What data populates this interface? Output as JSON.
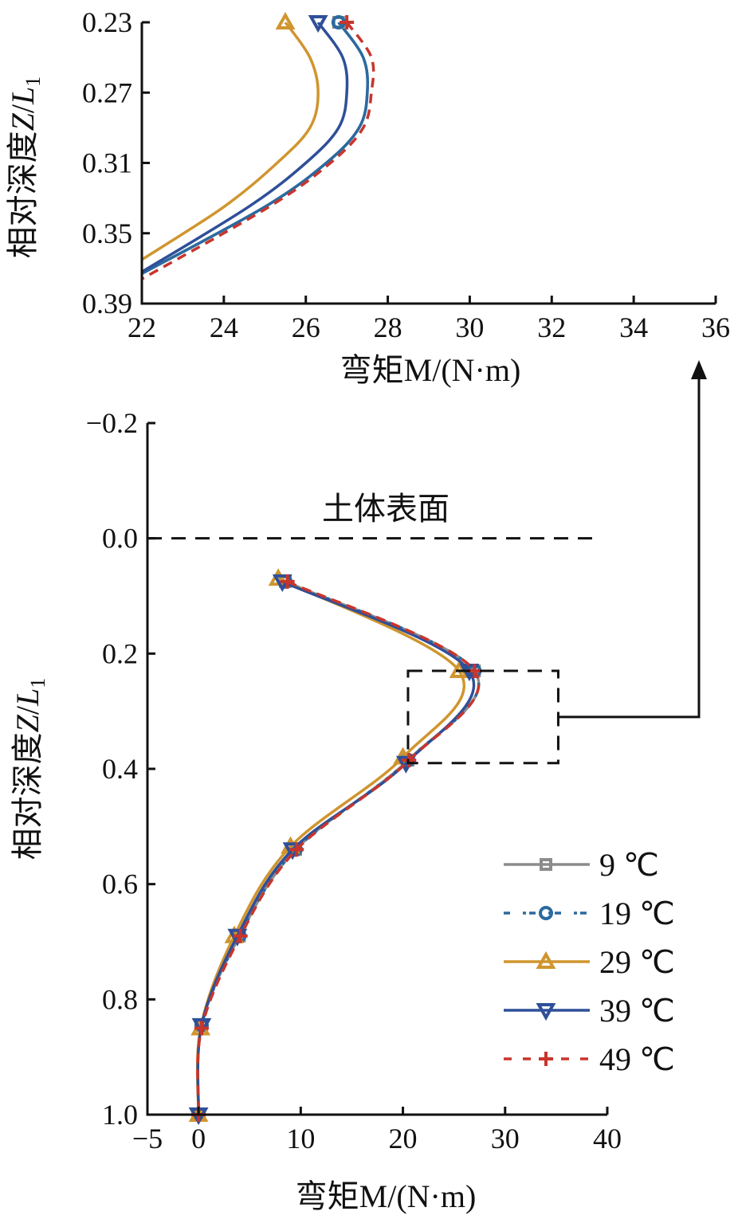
{
  "chart_data": [
    {
      "type": "line",
      "title": "inset",
      "xlabel": "弯矩M/(N·m)",
      "xlabel_parts": [
        "弯矩",
        "M",
        "/(N·m)"
      ],
      "ylabel": "相对深度Z/L1",
      "ylabel_parts": [
        "相对深度",
        "Z",
        "/",
        "L",
        "1"
      ],
      "xlim": [
        22,
        36
      ],
      "ylim": [
        0.23,
        0.39
      ],
      "xticks": [
        22,
        24,
        26,
        28,
        30,
        32,
        34,
        36
      ],
      "yticks": [
        "0.23",
        "0.27",
        "0.31",
        "0.35",
        "0.39"
      ],
      "series": [
        {
          "name": "9 ℃",
          "color": "#8c8c8c",
          "dash": "",
          "points": [
            [
              26.8,
              0.23
            ],
            [
              27.4,
              0.25
            ],
            [
              27.5,
              0.27
            ],
            [
              27.3,
              0.29
            ],
            [
              26.5,
              0.31
            ],
            [
              25.0,
              0.335
            ],
            [
              22,
              0.373
            ]
          ]
        },
        {
          "name": "19 ℃",
          "color": "#2a6aa0",
          "dash": "",
          "points": [
            [
              26.8,
              0.23
            ],
            [
              27.4,
              0.25
            ],
            [
              27.5,
              0.27
            ],
            [
              27.3,
              0.29
            ],
            [
              26.5,
              0.31
            ],
            [
              25.0,
              0.335
            ],
            [
              22,
              0.373
            ]
          ]
        },
        {
          "name": "29 ℃",
          "color": "#d0952e",
          "dash": "",
          "points": [
            [
              25.5,
              0.23
            ],
            [
              26.1,
              0.25
            ],
            [
              26.3,
              0.27
            ],
            [
              26.1,
              0.29
            ],
            [
              25.3,
              0.31
            ],
            [
              24.0,
              0.335
            ],
            [
              22,
              0.365
            ]
          ]
        },
        {
          "name": "39 ℃",
          "color": "#2f4f98",
          "dash": "",
          "points": [
            [
              26.3,
              0.23
            ],
            [
              26.9,
              0.25
            ],
            [
              27.0,
              0.27
            ],
            [
              26.8,
              0.29
            ],
            [
              26.0,
              0.31
            ],
            [
              24.6,
              0.335
            ],
            [
              22,
              0.372
            ]
          ]
        },
        {
          "name": "49 ℃",
          "color": "#c8352c",
          "dash": "12 8",
          "points": [
            [
              27.0,
              0.23
            ],
            [
              27.6,
              0.25
            ],
            [
              27.6,
              0.27
            ],
            [
              27.4,
              0.29
            ],
            [
              26.6,
              0.31
            ],
            [
              25.1,
              0.335
            ],
            [
              22,
              0.376
            ]
          ]
        }
      ]
    },
    {
      "type": "line",
      "title": "main",
      "xlabel": "弯矩M/(N·m)",
      "xlabel_parts": [
        "弯矩",
        "M",
        "/(N·m)"
      ],
      "ylabel": "相对深度Z/L1",
      "ylabel_parts": [
        "相对深度",
        "Z",
        "/",
        "L",
        "1"
      ],
      "xlim": [
        -5,
        40
      ],
      "ylim": [
        -0.2,
        1.0
      ],
      "xticks": [
        "−5",
        "0",
        "10",
        "20",
        "30",
        "40"
      ],
      "xtick_values": [
        -5,
        0,
        10,
        20,
        30,
        40
      ],
      "yticks": [
        "−0.2",
        "0.0",
        "0.2",
        "0.4",
        "0.6",
        "0.8",
        "1.0"
      ],
      "ytick_values": [
        -0.2,
        0,
        0.2,
        0.4,
        0.6,
        0.8,
        1.0
      ],
      "annotation": "土体表面",
      "zoom_box": {
        "x": [
          20.5,
          35.2
        ],
        "y": [
          0.23,
          0.39
        ]
      },
      "legend_position": "bottom-right",
      "series": [
        {
          "name": "9 ℃",
          "marker": "square",
          "color": "#8c8c8c",
          "dash": "",
          "points": [
            [
              8.5,
              0.075
            ],
            [
              27,
              0.23
            ],
            [
              20.5,
              0.385
            ],
            [
              9.5,
              0.54
            ],
            [
              4,
              0.69
            ],
            [
              0.3,
              0.845
            ],
            [
              0,
              1.0
            ]
          ]
        },
        {
          "name": "19 ℃",
          "marker": "circle",
          "color": "#2a6aa0",
          "dash": "4 10",
          "points": [
            [
              8.5,
              0.075
            ],
            [
              27,
              0.23
            ],
            [
              20.5,
              0.385
            ],
            [
              9.5,
              0.54
            ],
            [
              4,
              0.69
            ],
            [
              0.3,
              0.845
            ],
            [
              0,
              1.0
            ]
          ]
        },
        {
          "name": "29 ℃",
          "marker": "triangle-up",
          "color": "#d0952e",
          "dash": "",
          "points": [
            [
              7.8,
              0.07
            ],
            [
              25.5,
              0.23
            ],
            [
              20,
              0.38
            ],
            [
              9,
              0.535
            ],
            [
              3.5,
              0.69
            ],
            [
              0.2,
              0.85
            ],
            [
              0,
              1.0
            ]
          ]
        },
        {
          "name": "39 ℃",
          "marker": "triangle-down",
          "color": "#2f4f98",
          "dash": "",
          "points": [
            [
              8.2,
              0.075
            ],
            [
              26.5,
              0.23
            ],
            [
              20.3,
              0.39
            ],
            [
              9.2,
              0.54
            ],
            [
              3.8,
              0.69
            ],
            [
              0.3,
              0.845
            ],
            [
              0,
              1.0
            ]
          ]
        },
        {
          "name": "49 ℃",
          "marker": "plus",
          "color": "#c8352c",
          "dash": "12 8",
          "points": [
            [
              8.7,
              0.075
            ],
            [
              27,
              0.23
            ],
            [
              20.6,
              0.385
            ],
            [
              9.6,
              0.54
            ],
            [
              4.1,
              0.69
            ],
            [
              0.3,
              0.85
            ],
            [
              0,
              1.0
            ]
          ]
        }
      ]
    }
  ]
}
